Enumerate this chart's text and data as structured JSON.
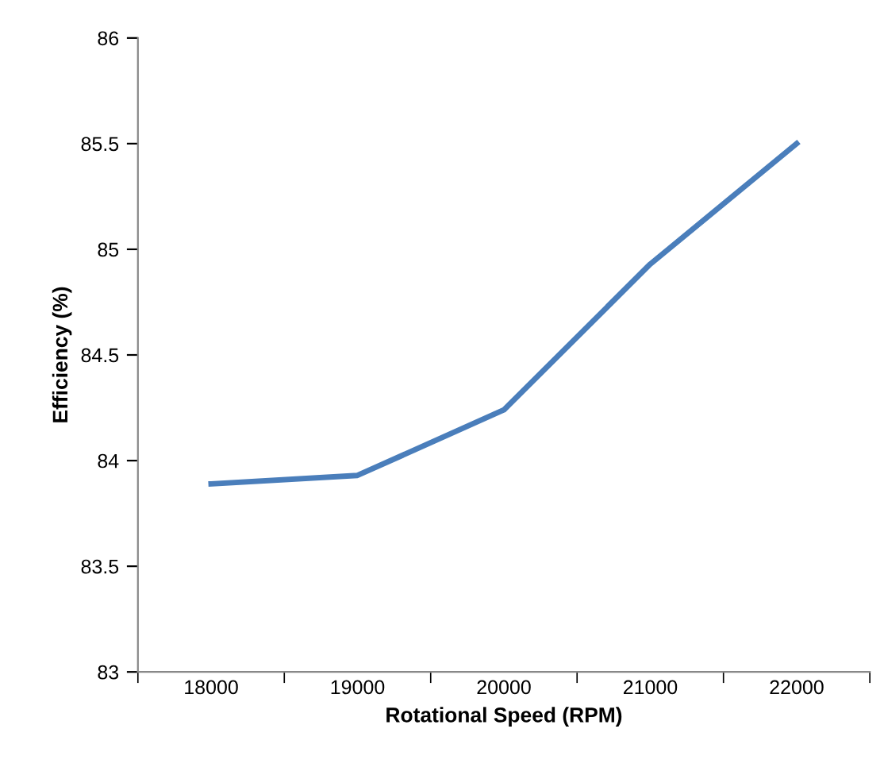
{
  "chart_data": {
    "type": "line",
    "xlabel": "Rotational Speed (RPM)",
    "ylabel": "Efficiency (%)",
    "categories": [
      "18000",
      "19000",
      "20000",
      "21000",
      "22000"
    ],
    "series": [
      {
        "color": "#4a7ebb",
        "values": [
          83.89,
          83.93,
          84.24,
          84.93,
          85.5
        ]
      }
    ],
    "ylim": [
      83,
      86
    ],
    "yticks": [
      83,
      83.5,
      84,
      84.5,
      85,
      85.5,
      86
    ],
    "grid": false,
    "legend": false,
    "marker": "none",
    "line_style": "solid"
  }
}
